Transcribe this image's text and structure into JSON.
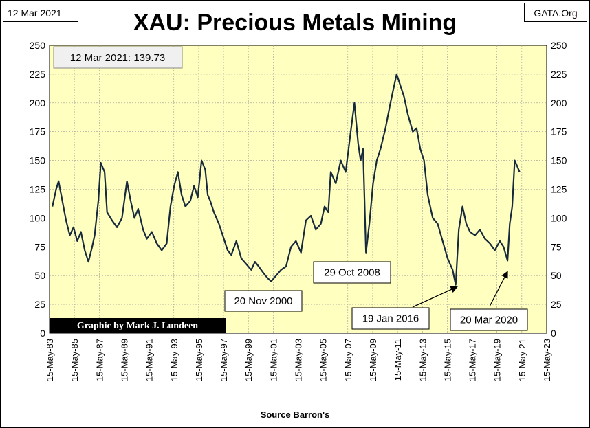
{
  "header": {
    "date_label": "12 Mar 2021",
    "source_label": "GATA.Org",
    "title": "XAU: Precious Metals Mining"
  },
  "xaxis_label": "Source Barron's",
  "colors": {
    "plot_bg": "#FFFFC0",
    "line": "#17293D",
    "grid": "#999999"
  },
  "chart_data": {
    "type": "line",
    "title": "XAU: Precious Metals Mining",
    "xlabel": "Source Barron's",
    "ylabel": "",
    "ylim": [
      0,
      250
    ],
    "yticks": [
      0,
      25,
      50,
      75,
      100,
      125,
      150,
      175,
      200,
      225,
      250
    ],
    "y_axes": "left-and-right",
    "grid": true,
    "xlim": [
      1983.37,
      2023.37
    ],
    "xtick_labels": [
      "15-May-83",
      "15-May-85",
      "15-May-87",
      "15-May-89",
      "15-May-91",
      "15-May-93",
      "15-May-95",
      "15-May-97",
      "15-May-99",
      "15-May-01",
      "15-May-03",
      "15-May-05",
      "15-May-07",
      "15-May-09",
      "15-May-11",
      "15-May-13",
      "15-May-15",
      "15-May-17",
      "15-May-19",
      "15-May-21",
      "15-May-23"
    ],
    "series": [
      {
        "x": [
          1983.6,
          1983.9,
          1984.1,
          1984.4,
          1984.7,
          1985.0,
          1985.3,
          1985.6,
          1985.9,
          1986.2,
          1986.5,
          1986.8,
          1987.0,
          1987.3,
          1987.5,
          1987.8,
          1988.0,
          1988.4,
          1988.8,
          1989.2,
          1989.6,
          1989.9,
          1990.2,
          1990.5,
          1990.9,
          1991.2,
          1991.6,
          1992.0,
          1992.4,
          1992.8,
          1993.1,
          1993.4,
          1993.7,
          1994.0,
          1994.3,
          1994.7,
          1995.0,
          1995.3,
          1995.6,
          1995.9,
          1996.1,
          1996.3,
          1996.6,
          1997.0,
          1997.4,
          1997.7,
          1998.0,
          1998.4,
          1998.8,
          1999.2,
          1999.6,
          1999.9,
          2000.2,
          2000.6,
          2000.9,
          2001.2,
          2001.6,
          2002.0,
          2002.4,
          2002.8,
          2003.2,
          2003.6,
          2004.0,
          2004.4,
          2004.8,
          2005.2,
          2005.5,
          2005.8,
          2006.0,
          2006.4,
          2006.8,
          2007.2,
          2007.6,
          2007.9,
          2008.2,
          2008.4,
          2008.6,
          2008.83,
          2009.1,
          2009.4,
          2009.7,
          2010.0,
          2010.4,
          2010.8,
          2011.0,
          2011.3,
          2011.6,
          2011.9,
          2012.2,
          2012.6,
          2012.9,
          2013.2,
          2013.5,
          2013.8,
          2014.2,
          2014.6,
          2015.0,
          2015.4,
          2015.8,
          2016.05,
          2016.3,
          2016.6,
          2016.9,
          2017.2,
          2017.6,
          2018.0,
          2018.4,
          2018.8,
          2019.2,
          2019.6,
          2019.9,
          2020.22,
          2020.4,
          2020.6,
          2020.8,
          2021.0,
          2021.19
        ],
        "y": [
          110,
          125,
          132,
          115,
          98,
          85,
          92,
          80,
          88,
          72,
          62,
          75,
          85,
          115,
          148,
          140,
          105,
          98,
          92,
          100,
          132,
          115,
          100,
          108,
          90,
          82,
          88,
          78,
          72,
          78,
          110,
          128,
          140,
          120,
          110,
          115,
          128,
          118,
          150,
          142,
          120,
          115,
          105,
          95,
          82,
          72,
          68,
          80,
          65,
          60,
          55,
          62,
          58,
          52,
          48,
          45,
          50,
          55,
          58,
          75,
          80,
          70,
          98,
          102,
          90,
          95,
          110,
          105,
          140,
          130,
          150,
          140,
          175,
          200,
          165,
          150,
          160,
          70,
          95,
          130,
          150,
          160,
          178,
          200,
          210,
          225,
          215,
          205,
          190,
          175,
          178,
          160,
          150,
          120,
          100,
          95,
          80,
          65,
          55,
          42,
          90,
          110,
          95,
          88,
          85,
          90,
          82,
          78,
          72,
          80,
          75,
          63,
          95,
          110,
          150,
          145,
          140
        ]
      }
    ],
    "annotations": [
      {
        "label": "12 Mar 2021:  139.73",
        "position": "top-left"
      },
      {
        "label": "20 Nov 2000",
        "x": 2000.89,
        "y": 42
      },
      {
        "label": "29 Oct 2008",
        "x": 2008.83,
        "y": 70
      },
      {
        "label": "19 Jan 2016",
        "x": 2016.05,
        "y": 42
      },
      {
        "label": "20 Mar 2020",
        "x": 2020.22,
        "y": 63
      }
    ],
    "credit": "Graphic by Mark J. Lundeen"
  }
}
